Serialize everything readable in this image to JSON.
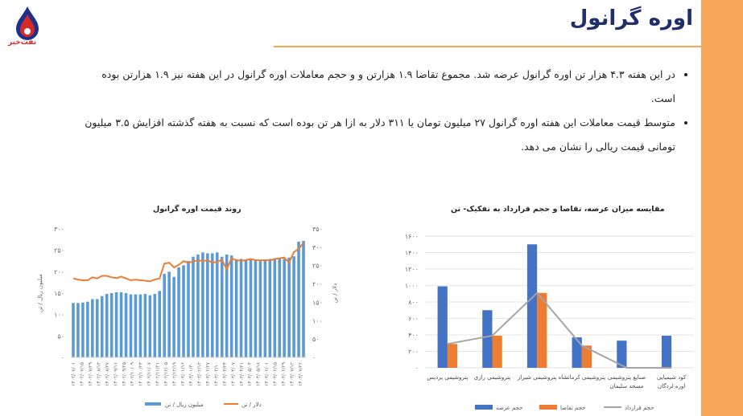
{
  "page": {
    "title": "اوره گرانول",
    "logo_text": "نفت‌خبر",
    "bullets": [
      "در این هفته ۴.۳ هزار تن اوره گرانول عرضه شد. مجموع تقاضا ۱.۹ هزارتن و و حجم معاملات اوره گرانول در این هفته نیز ۱.۹ هزارتن بوده است.",
      "متوسط قیمت معاملات این هفته اوره گرانول ۲۷ میلیون تومان یا ۳۱۱ دلار به ازا هر تن بوده است که نسبت به هفته گذشته افزایش ۳.۵ میلیون تومانی قیمت ریالی را نشان می دهد."
    ],
    "colors": {
      "accent": "#f7a556",
      "title": "#1f2f6b",
      "blue": "#5b9bd5",
      "orange": "#ed7d31",
      "navy_blue": "#4472c4",
      "gray": "#a5a5a5"
    }
  },
  "chart_data": [
    {
      "type": "bar",
      "title": "روند قیمت اوره گرانول",
      "ylabel": "میلیون ریال / تن",
      "y2label": "دلار / تن",
      "ylim": [
        0,
        300
      ],
      "y2lim": [
        0,
        350
      ],
      "yticks": [
        "۰",
        "۵۰",
        "۱۰۰",
        "۱۵۰",
        "۲۰۰",
        "۲۵۰",
        "۳۰۰"
      ],
      "y2ticks": [
        "۰",
        "۵۰",
        "۱۰۰",
        "۱۵۰",
        "۲۰۰",
        "۲۵۰",
        "۳۰۰",
        "۳۵۰"
      ],
      "x_labels": [
        "۱۴۰۲/۰۷/۰۱",
        "۱۴۰۲/۰۷/۱۵",
        "۱۴۰۲/۰۷/۲۹",
        "۱۴۰۲/۰۸/۱۳",
        "۱۴۰۲/۰۸/۲۷",
        "۱۴۰۲/۰۹/۱۱",
        "۱۴۰۲/۰۹/۲۵",
        "۱۴۰۲/۱۰/۰۹",
        "۱۴۰۲/۱۰/۲۳",
        "۱۴۰۲/۱۱/۰۷",
        "۱۴۰۲/۱۱/۲۱",
        "۱۴۰۲/۱۲/۰۵",
        "۱۴۰۲/۱۲/۱۹",
        "۱۴۰۳/۰۱/۱۶",
        "۱۴۰۳/۰۱/۳۰",
        "۱۴۰۳/۰۲/۱۳",
        "۱۴۰۳/۰۲/۲۷",
        "۱۴۰۳/۰۳/۱۰",
        "۱۴۰۳/۰۳/۲۴",
        "۱۴۰۳/۰۴/۰۷",
        "۱۴۰۳/۰۴/۲۱",
        "۱۴۰۳/۰۵/۰۴",
        "۱۴۰۳/۰۵/۱۸",
        "۱۴۰۳/۰۶/۰۱",
        "۱۴۰۳/۰۶/۱۵",
        "۱۴۰۳/۰۶/۲۹",
        "۱۴۰۳/۰۷/۱۲",
        "۱۴۰۳/۰۷/۲۶"
      ],
      "series": [
        {
          "name": "میلیون ریال / تن",
          "axis": "left",
          "kind": "bar",
          "values": [
            127,
            127,
            128,
            130,
            136,
            136,
            143,
            148,
            150,
            152,
            152,
            150,
            147,
            147,
            147,
            148,
            145,
            148,
            155,
            195,
            200,
            188,
            210,
            215,
            225,
            235,
            240,
            245,
            243,
            243,
            245,
            235,
            240,
            238,
            228,
            230,
            228,
            228,
            228,
            228,
            228,
            230,
            230,
            230,
            230,
            233,
            236,
            270,
            272
          ]
        },
        {
          "name": "دلار / تن",
          "axis": "right",
          "kind": "line",
          "values": [
            215,
            212,
            210,
            210,
            218,
            215,
            222,
            222,
            218,
            216,
            220,
            215,
            210,
            212,
            210,
            209,
            207,
            212,
            215,
            255,
            258,
            245,
            252,
            262,
            258,
            261,
            265,
            262,
            265,
            258,
            260,
            266,
            240,
            270,
            265,
            263,
            265,
            268,
            265,
            264,
            265,
            264,
            268,
            270,
            272,
            258,
            287,
            295,
            312
          ]
        }
      ]
    },
    {
      "type": "bar",
      "title": "مقایسه میزان عرضه، تقاضا و حجم قرارداد به تفکیک-  تن",
      "ylim": [
        0,
        1600
      ],
      "yticks": [
        "۰",
        "۲۰۰",
        "۴۰۰",
        "۶۰۰",
        "۸۰۰",
        "۱۰۰۰",
        "۱۲۰۰",
        "۱۴۰۰",
        "۱۶۰۰"
      ],
      "categories": [
        "پتروشیمی پردیس",
        "پتروشیمی رازی",
        "پتروشیمی شیراز",
        "پتروشیمی کرمانشاه",
        "صنایع پتروشیمی مسجد سلیمان",
        "کود شیمیایی اوره لردگان"
      ],
      "series": [
        {
          "name": "حجم عرضه",
          "kind": "bar",
          "values": [
            990,
            700,
            1500,
            370,
            330,
            390
          ]
        },
        {
          "name": "حجم تقاضا",
          "kind": "bar",
          "values": [
            290,
            390,
            910,
            270,
            0,
            0
          ]
        },
        {
          "name": "حجم قرارداد",
          "kind": "line",
          "values": [
            290,
            390,
            910,
            270,
            0,
            0
          ]
        }
      ]
    }
  ]
}
